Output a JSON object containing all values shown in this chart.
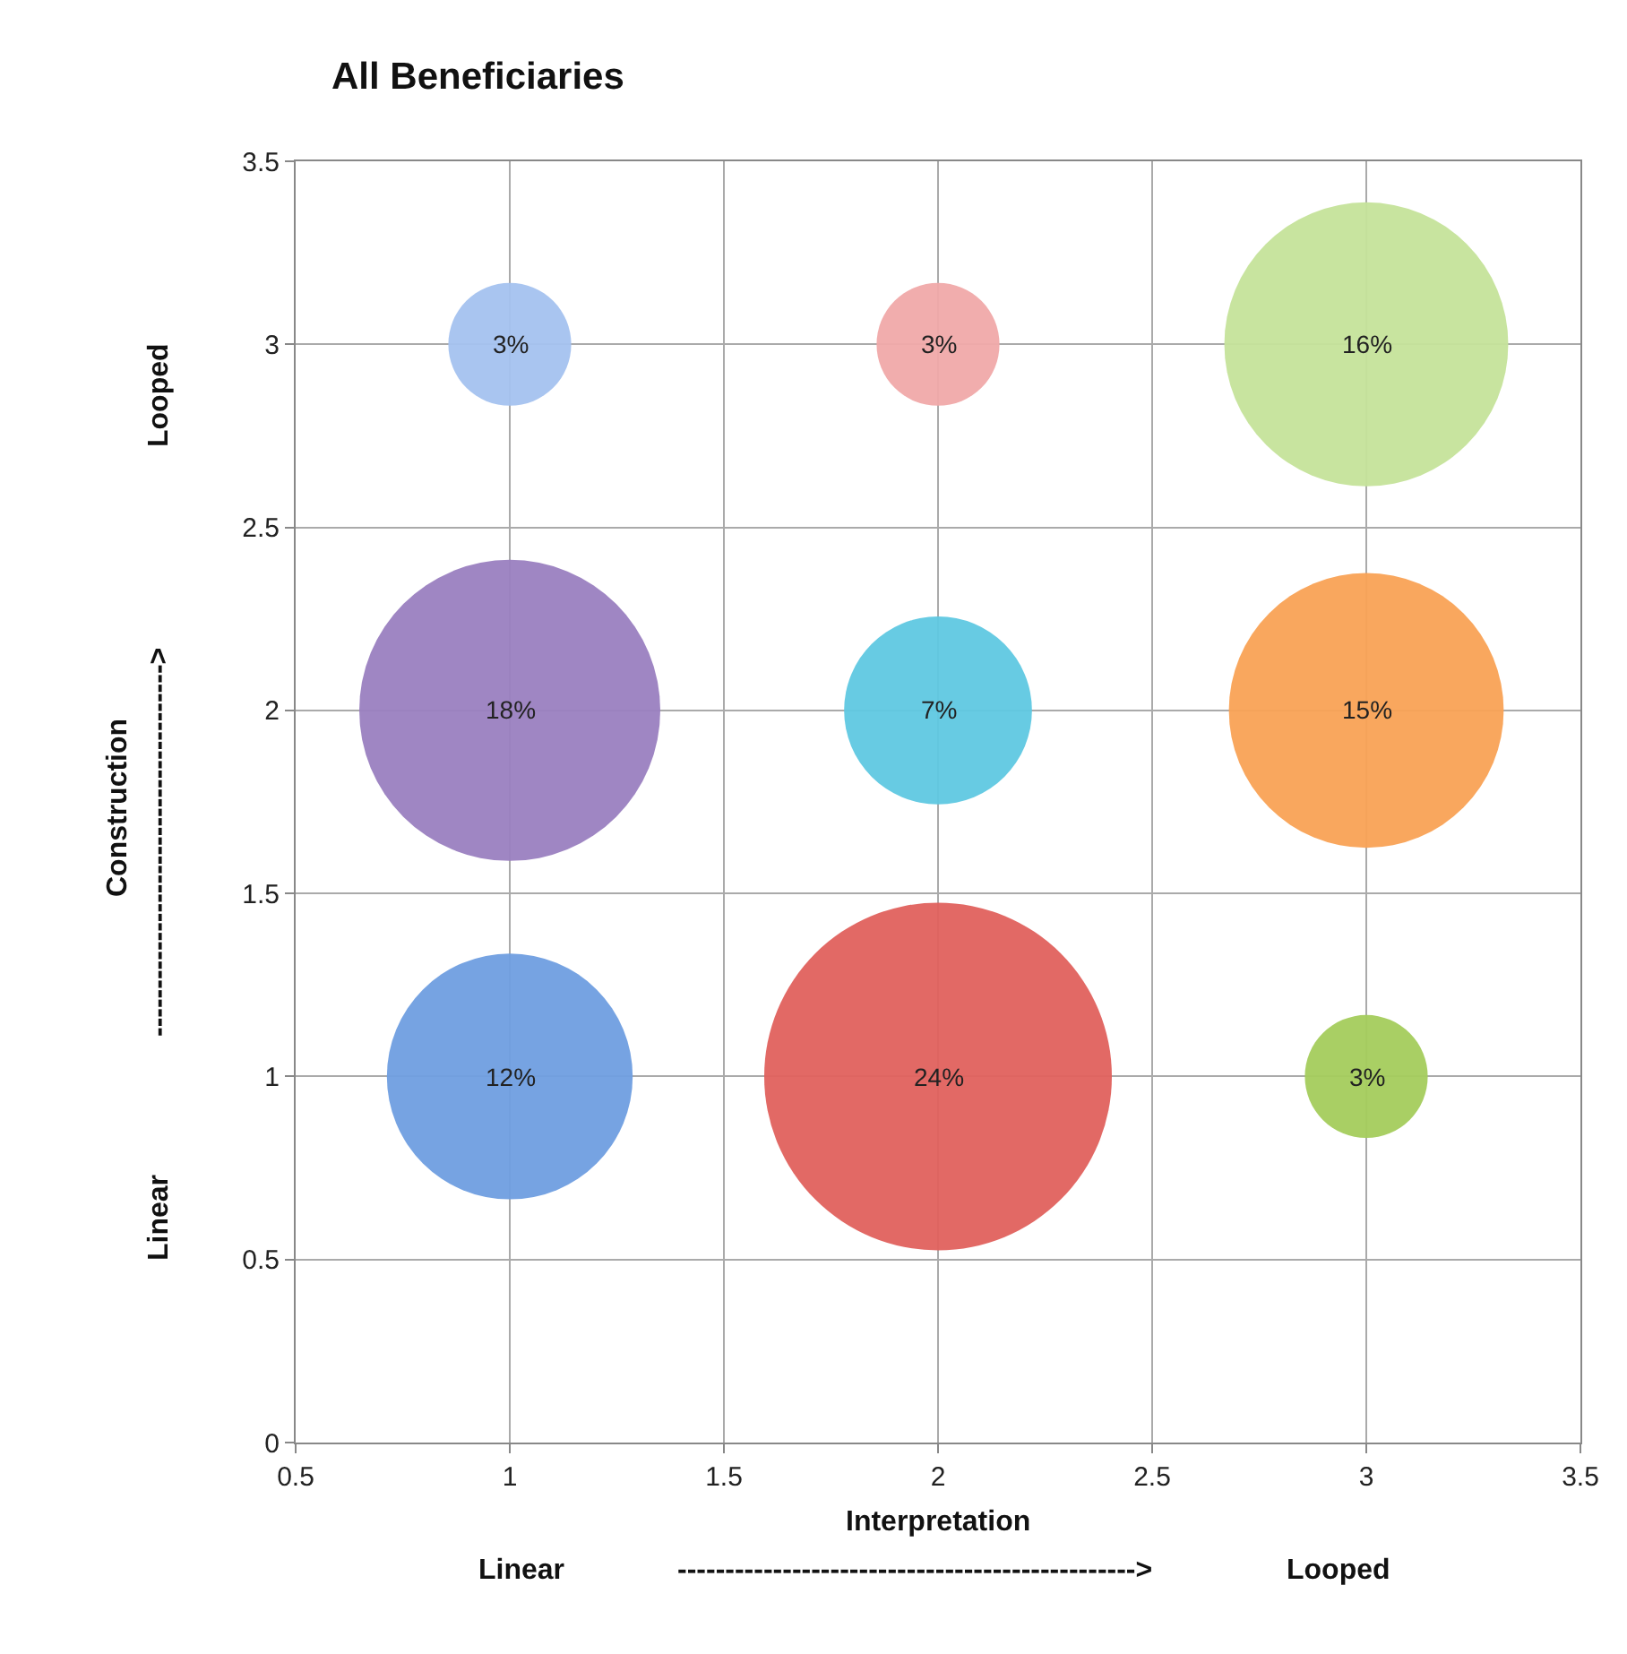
{
  "chart_data": {
    "type": "bubble",
    "title": "All Beneficiaries",
    "xlabel": "Interpretation",
    "ylabel": "Construction",
    "x": [
      1,
      2,
      3,
      1,
      2,
      3,
      1,
      2,
      3
    ],
    "values": [
      3,
      3,
      3,
      2,
      2,
      2,
      1,
      1,
      1
    ],
    "sizes": [
      0.125,
      0.125,
      0.667,
      0.75,
      0.292,
      0.625,
      0.5,
      1.0,
      0.125
    ],
    "colors": [
      "#a4c2ef",
      "#f0a9a9",
      "#c5e39a",
      "#9a80c0",
      "#5fc8e2",
      "#f9a255",
      "#6f9ee0",
      "#e0615d",
      "#a4cc5c"
    ],
    "xlim": [
      0.5,
      3.5
    ],
    "xticks": [
      0.5,
      1,
      1.5,
      2,
      2.5,
      3,
      3.5
    ],
    "ylim": [
      0,
      3.5
    ],
    "yticks": [
      0,
      0.5,
      1,
      1.5,
      2,
      2.5,
      3,
      3.5
    ],
    "grid": true,
    "annotations": [
      "Linear",
      "------------------------------------------------>",
      "Looped",
      "Linear",
      "--------------------------------------->",
      "Looped",
      {
        "text": "3%",
        "x": 1,
        "y": 3
      },
      {
        "text": "3%",
        "x": 2,
        "y": 3
      },
      {
        "text": "16%",
        "x": 3,
        "y": 3
      },
      {
        "text": "18%",
        "x": 1,
        "y": 2
      },
      {
        "text": "7%",
        "x": 2,
        "y": 2
      },
      {
        "text": "15%",
        "x": 3,
        "y": 2
      },
      {
        "text": "12%",
        "x": 1,
        "y": 1
      },
      {
        "text": "24%",
        "x": 2,
        "y": 1
      },
      {
        "text": "3%",
        "x": 3,
        "y": 1
      }
    ]
  }
}
